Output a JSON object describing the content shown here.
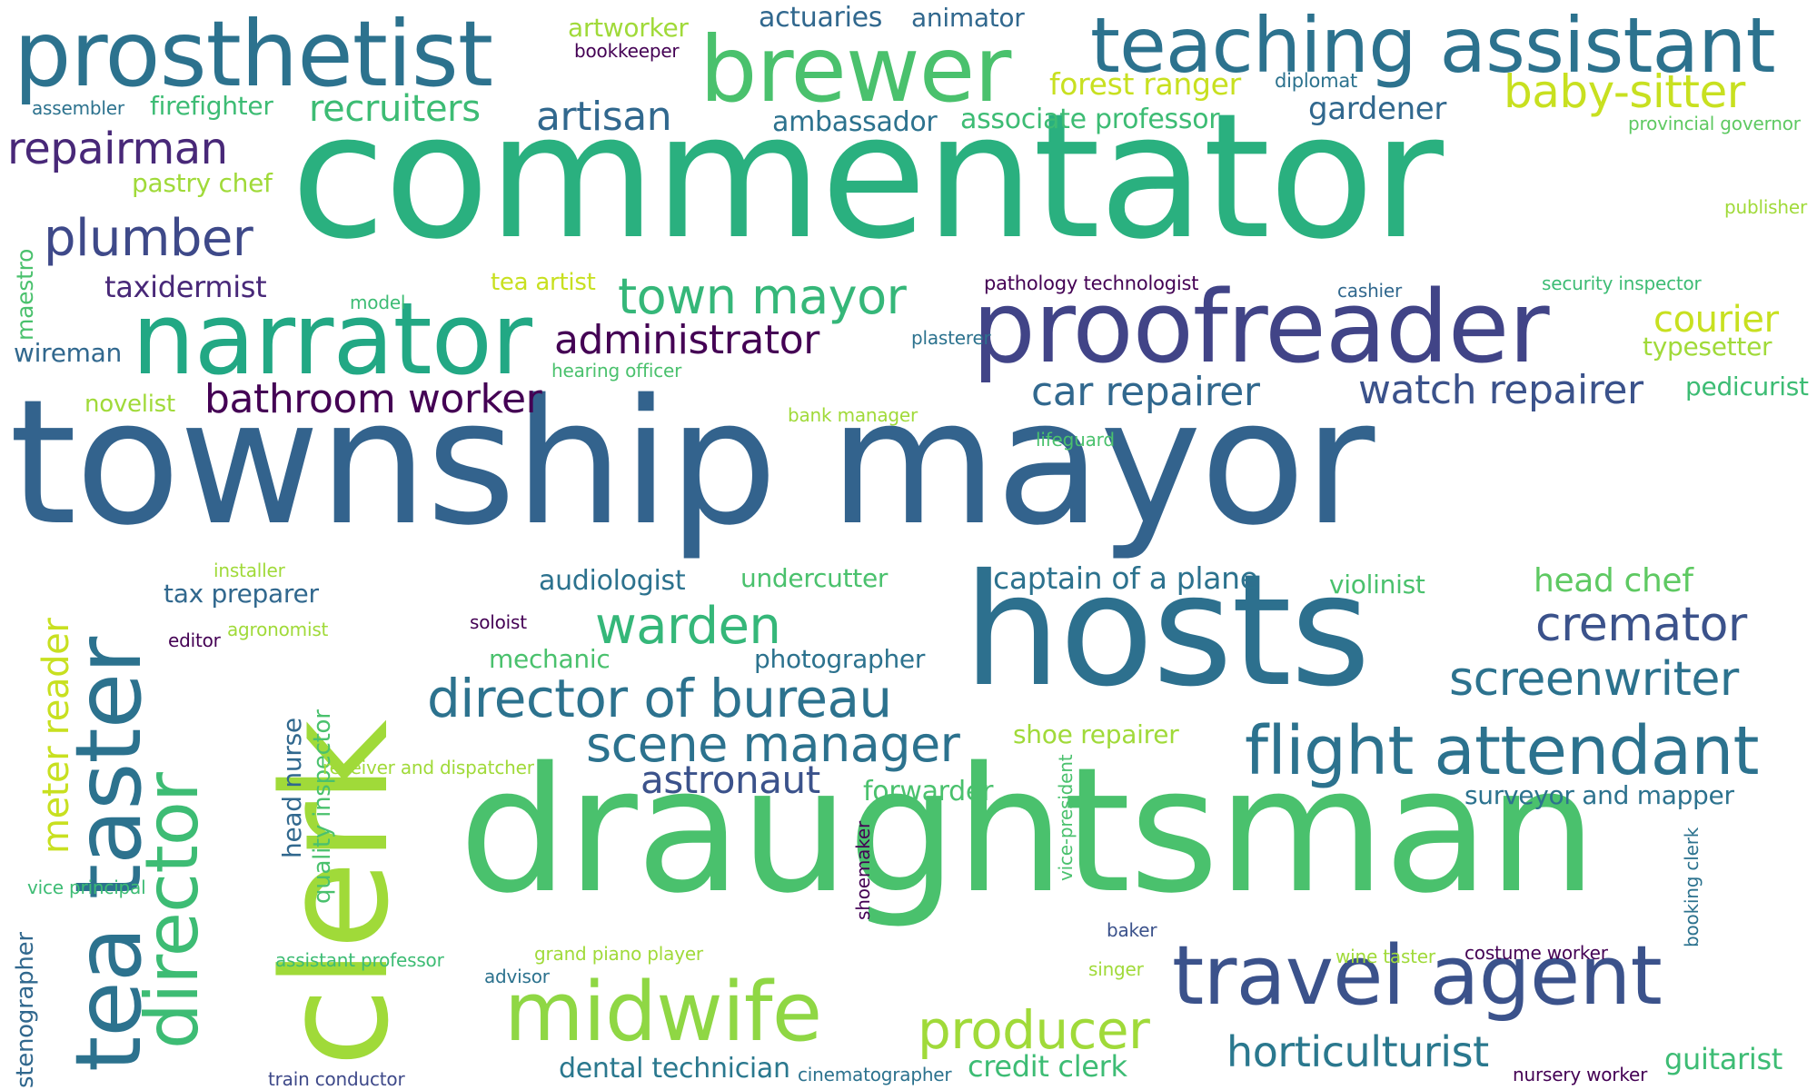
{
  "words": [
    {
      "text": "township mayor",
      "color": "#33638d"
    },
    {
      "text": "commentator",
      "color": "#2ab07f"
    },
    {
      "text": "draughtsman",
      "color": "#4ac16d"
    },
    {
      "text": "hosts",
      "color": "#2d708e"
    },
    {
      "text": "clerk",
      "color": "#a0da39"
    },
    {
      "text": "proofreader",
      "color": "#414487"
    },
    {
      "text": "narrator",
      "color": "#22a884"
    },
    {
      "text": "prosthetist",
      "color": "#2c728e"
    },
    {
      "text": "brewer",
      "color": "#4ac16d"
    },
    {
      "text": "teaching assistant",
      "color": "#2c728e"
    },
    {
      "text": "travel agent",
      "color": "#3b528b"
    },
    {
      "text": "midwife",
      "color": "#8fd744"
    },
    {
      "text": "tea taster",
      "color": "#2c728e"
    },
    {
      "text": "director",
      "color": "#3dbc74"
    },
    {
      "text": "flight attendant",
      "color": "#2c728e"
    },
    {
      "text": "director of bureau",
      "color": "#2c728e"
    },
    {
      "text": "producer",
      "color": "#a0da39"
    },
    {
      "text": "scene manager",
      "color": "#2c728e"
    },
    {
      "text": "screenwriter",
      "color": "#2c728e"
    },
    {
      "text": "cremator",
      "color": "#3b528b"
    },
    {
      "text": "town mayor",
      "color": "#35b779"
    },
    {
      "text": "baby-sitter",
      "color": "#c8e020"
    },
    {
      "text": "horticulturist",
      "color": "#2a788e"
    },
    {
      "text": "warden",
      "color": "#35b779"
    },
    {
      "text": "repairman",
      "color": "#482878"
    },
    {
      "text": "plumber",
      "color": "#3e4989"
    },
    {
      "text": "administrator",
      "color": "#440154"
    },
    {
      "text": "watch repairer",
      "color": "#3b528b"
    },
    {
      "text": "bathroom worker",
      "color": "#440154"
    },
    {
      "text": "car repairer",
      "color": "#31688e"
    },
    {
      "text": "artisan",
      "color": "#31688e"
    },
    {
      "text": "recruiters",
      "color": "#3dbc74"
    },
    {
      "text": "courier",
      "color": "#c8e020"
    },
    {
      "text": "astronaut",
      "color": "#3b528b"
    },
    {
      "text": "meter reader",
      "color": "#c8e020"
    },
    {
      "text": "dental technician",
      "color": "#2a788e"
    },
    {
      "text": "credit clerk",
      "color": "#3dbc74"
    },
    {
      "text": "guitarist",
      "color": "#3dbc74"
    },
    {
      "text": "head chef",
      "color": "#5ec962"
    },
    {
      "text": "captain of a plane",
      "color": "#2c728e"
    },
    {
      "text": "audiologist",
      "color": "#2c728e"
    },
    {
      "text": "taxidermist",
      "color": "#482878"
    },
    {
      "text": "forest ranger",
      "color": "#c8e020"
    },
    {
      "text": "gardener",
      "color": "#31688e"
    },
    {
      "text": "ambassador",
      "color": "#2c728e"
    },
    {
      "text": "associate professor",
      "color": "#3dbc74"
    },
    {
      "text": "firefighter",
      "color": "#3dbc74"
    },
    {
      "text": "pastry chef",
      "color": "#a0da39"
    },
    {
      "text": "typesetter",
      "color": "#a0da39"
    },
    {
      "text": "pedicurist",
      "color": "#3dbc74"
    },
    {
      "text": "actuaries",
      "color": "#31688e"
    },
    {
      "text": "animator",
      "color": "#31688e"
    },
    {
      "text": "artworker",
      "color": "#a0da39"
    },
    {
      "text": "tax preparer",
      "color": "#31688e"
    },
    {
      "text": "undercutter",
      "color": "#4ac16d"
    },
    {
      "text": "violinist",
      "color": "#4ac16d"
    },
    {
      "text": "photographer",
      "color": "#2c728e"
    },
    {
      "text": "mechanic",
      "color": "#4ac16d"
    },
    {
      "text": "shoe repairer",
      "color": "#a0da39"
    },
    {
      "text": "forwarder",
      "color": "#4ac16d"
    },
    {
      "text": "surveyor and mapper",
      "color": "#2c728e"
    },
    {
      "text": "novelist",
      "color": "#a0da39"
    },
    {
      "text": "wireman",
      "color": "#31688e"
    },
    {
      "text": "tea artist",
      "color": "#c8e020"
    },
    {
      "text": "head nurse",
      "color": "#31688e"
    },
    {
      "text": "quality inspector",
      "color": "#4ac16d"
    },
    {
      "text": "maestro",
      "color": "#4ac16d"
    },
    {
      "text": "stenographer",
      "color": "#31688e"
    },
    {
      "text": "bookkeeper",
      "color": "#440154"
    },
    {
      "text": "assembler",
      "color": "#2c728e"
    },
    {
      "text": "diplomat",
      "color": "#2c728e"
    },
    {
      "text": "provincial governor",
      "color": "#5ec962"
    },
    {
      "text": "publisher",
      "color": "#a0da39"
    },
    {
      "text": "pathology technologist",
      "color": "#440154"
    },
    {
      "text": "cashier",
      "color": "#31688e"
    },
    {
      "text": "security inspector",
      "color": "#3dbc74"
    },
    {
      "text": "model",
      "color": "#3dbc74"
    },
    {
      "text": "plasterer",
      "color": "#2c728e"
    },
    {
      "text": "hearing officer",
      "color": "#4ac16d"
    },
    {
      "text": "bank manager",
      "color": "#a0da39"
    },
    {
      "text": "lifeguard",
      "color": "#4ac16d"
    },
    {
      "text": "installer",
      "color": "#a0da39"
    },
    {
      "text": "agronomist",
      "color": "#a0da39"
    },
    {
      "text": "editor",
      "color": "#440154"
    },
    {
      "text": "soloist",
      "color": "#440154"
    },
    {
      "text": "receiver and dispatcher",
      "color": "#a0da39"
    },
    {
      "text": "vice principal",
      "color": "#3dbc74"
    },
    {
      "text": "assistant professor",
      "color": "#3dbc74"
    },
    {
      "text": "advisor",
      "color": "#2c728e"
    },
    {
      "text": "grand piano player",
      "color": "#a0da39"
    },
    {
      "text": "shoemaker",
      "color": "#440154"
    },
    {
      "text": "vice-president",
      "color": "#4ac16d"
    },
    {
      "text": "baker",
      "color": "#3b528b"
    },
    {
      "text": "singer",
      "color": "#a0da39"
    },
    {
      "text": "booking clerk",
      "color": "#2c728e"
    },
    {
      "text": "wine taster",
      "color": "#a0da39"
    },
    {
      "text": "costume worker",
      "color": "#440154"
    },
    {
      "text": "train conductor",
      "color": "#3e4989"
    },
    {
      "text": "cinematographer",
      "color": "#2c728e"
    },
    {
      "text": "nursery worker",
      "color": "#440154"
    }
  ]
}
